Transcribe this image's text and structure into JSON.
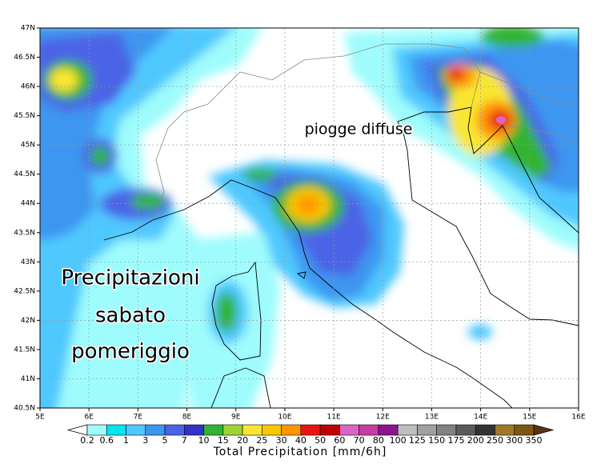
{
  "annotations": [
    "piogge diffuse",
    "Precipitazioni",
    "sabato",
    "pomeriggio"
  ],
  "x_labels": [
    "5E",
    "6E",
    "7E",
    "8E",
    "9E",
    "10E",
    "11E",
    "12E",
    "13E",
    "14E",
    "15E",
    "16E"
  ],
  "y_labels": [
    "47N",
    "46.5N",
    "46N",
    "45.5N",
    "45N",
    "44.5N",
    "44N",
    "43.5N",
    "43N",
    "42.5N",
    "42N",
    "41.5N",
    "41N",
    "40.5N"
  ],
  "colorbar": {
    "title": "Total Precipitation [mm/6h]",
    "labels": [
      0.2,
      0.6,
      1,
      3,
      5,
      7,
      10,
      15,
      20,
      25,
      30,
      40,
      50,
      60,
      70,
      80,
      100,
      125,
      150,
      175,
      200,
      250,
      300,
      350
    ],
    "colors": [
      "#ffffff",
      "#9ffcfc",
      "#00e6f0",
      "#50c8ff",
      "#3c96f0",
      "#4b64e6",
      "#3232c8",
      "#32b432",
      "#a0d232",
      "#fae632",
      "#fac800",
      "#ff9600",
      "#e61414",
      "#c00000",
      "#dc64c8",
      "#c83ca0",
      "#8c148c",
      "#bebebe",
      "#a0a0a0",
      "#828282",
      "#5a5a5a",
      "#323232",
      "#a07828",
      "#7d5514",
      "#5a3214"
    ]
  }
}
